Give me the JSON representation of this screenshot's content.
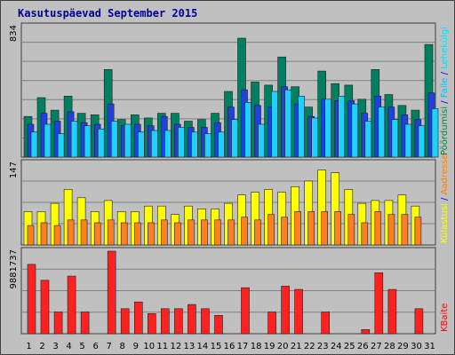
{
  "chart_data": {
    "type": "bar",
    "title": "Kasutuspäevad September 2015",
    "categories": [
      "1",
      "2",
      "3",
      "4",
      "5",
      "6",
      "7",
      "8",
      "9",
      "10",
      "11",
      "12",
      "13",
      "14",
      "15",
      "16",
      "17",
      "18",
      "19",
      "20",
      "21",
      "22",
      "23",
      "24",
      "25",
      "26",
      "27",
      "28",
      "29",
      "30",
      "31"
    ],
    "weekend_days": [
      5,
      6,
      12,
      13,
      19,
      20,
      26,
      27
    ],
    "panels": [
      {
        "name": "visits",
        "ymax": 834,
        "ymax_label": "834",
        "right_label": [
          {
            "text": "Pöördumisi",
            "color": "#008040"
          },
          {
            "text": " / ",
            "color": "#0000ff"
          },
          {
            "text": "Faile",
            "color": "#00c0ff"
          },
          {
            "text": " / ",
            "color": "#0000ff"
          },
          {
            "text": "Lehekülgi",
            "color": "#00e0ff"
          }
        ],
        "series": [
          {
            "name": "Pöördumisi",
            "color": "#008060",
            "values": [
              260,
              380,
              300,
              390,
              280,
              270,
              560,
              240,
              270,
              250,
              280,
              280,
              230,
              240,
              280,
              420,
              760,
              480,
              460,
              640,
              450,
              320,
              550,
              470,
              460,
              370,
              560,
              400,
              330,
              300,
              720
            ]
          },
          {
            "name": "Faile",
            "color": "#2040e0",
            "values": [
              210,
              280,
              230,
              290,
              220,
              210,
              340,
              200,
              210,
              200,
              260,
              210,
              190,
              190,
              220,
              320,
              430,
              330,
              320,
              450,
              340,
              260,
              370,
              360,
              360,
              280,
              390,
              320,
              270,
              240,
              410
            ]
          },
          {
            "name": "Lehekülgi",
            "color": "#20d0ff",
            "values": [
              160,
              210,
              150,
              230,
              200,
              180,
              230,
              210,
              160,
              170,
              170,
              190,
              160,
              150,
              160,
              240,
              350,
              210,
              420,
              430,
              390,
              250,
              370,
              390,
              340,
              230,
              320,
              240,
              210,
              200,
              310
            ]
          }
        ]
      },
      {
        "name": "hosts",
        "ymax": 147,
        "ymax_label": "147",
        "right_label": [
          {
            "text": "Külastusi",
            "color": "#ffff00"
          },
          {
            "text": " / ",
            "color": "#0000ff"
          },
          {
            "text": "Aadresse",
            "color": "#ff8000"
          }
        ],
        "series": [
          {
            "name": "Külastusi",
            "color": "#ffff00",
            "values": [
              60,
              60,
              75,
              100,
              85,
              60,
              80,
              60,
              60,
              70,
              70,
              55,
              70,
              65,
              65,
              75,
              90,
              95,
              100,
              95,
              105,
              115,
              135,
              130,
              100,
              75,
              80,
              80,
              90,
              70,
              0
            ]
          },
          {
            "name": "Aadresse",
            "color": "#ff8020",
            "values": [
              35,
              40,
              35,
              45,
              45,
              40,
              45,
              40,
              40,
              40,
              45,
              40,
              45,
              45,
              45,
              45,
              50,
              45,
              55,
              50,
              60,
              60,
              60,
              60,
              55,
              40,
              60,
              55,
              55,
              50,
              0
            ]
          }
        ]
      },
      {
        "name": "kbytes",
        "ymax": 9881737,
        "ymax_label": "9881737",
        "right_label": [
          {
            "text": "KBaite",
            "color": "#ff0000"
          }
        ],
        "series": [
          {
            "name": "KBaite",
            "color": "#ff2020",
            "values": [
              8300000,
              6400000,
              2600000,
              6900000,
              2600000,
              0,
              9881737,
              3000000,
              3800000,
              2400000,
              3000000,
              3000000,
              3500000,
              3000000,
              2200000,
              0,
              5500000,
              0,
              2600000,
              5700000,
              5300000,
              0,
              2600000,
              0,
              0,
              500000,
              7300000,
              5300000,
              0,
              3000000,
              0
            ]
          }
        ]
      }
    ]
  }
}
